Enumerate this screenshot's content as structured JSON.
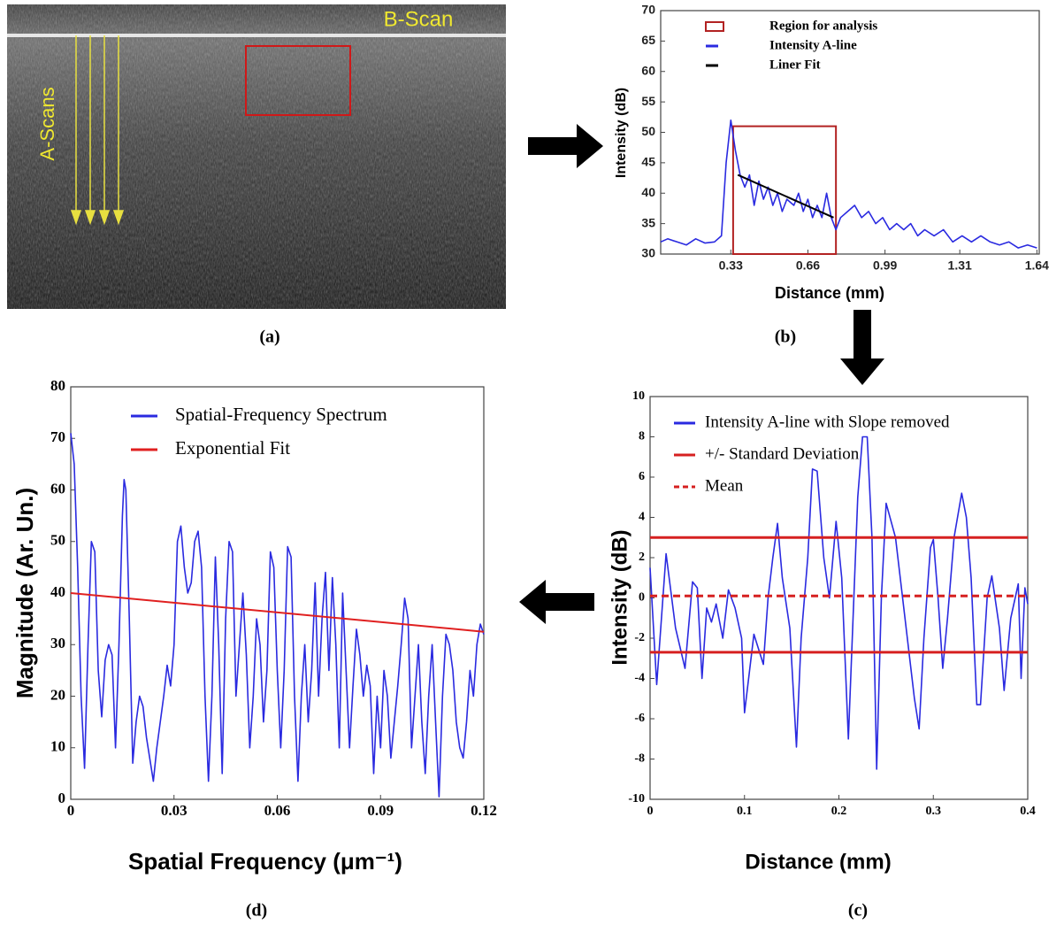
{
  "image_a": {
    "b_scan": "B-Scan",
    "a_scans": "A-Scans",
    "panel_label": "(a)"
  },
  "chart_data": [
    {
      "type": "line",
      "panel_label": "(b)",
      "x_label": "Distance (mm)",
      "y_label": "Intensity (dB)",
      "xlim": [
        0.03,
        1.65
      ],
      "xticks": [
        0.33,
        0.66,
        0.99,
        1.31,
        1.64
      ],
      "ylim": [
        30,
        70
      ],
      "yticks": [
        30,
        35,
        40,
        45,
        50,
        55,
        60,
        65,
        70
      ],
      "region": {
        "name": "Region for analysis",
        "color": "#b22222",
        "x": [
          0.34,
          0.78
        ],
        "y": [
          30,
          51
        ]
      },
      "series": [
        {
          "name": "Intensity A-line",
          "color": "#2a2ae0",
          "x": [
            0.03,
            0.06,
            0.1,
            0.14,
            0.18,
            0.22,
            0.26,
            0.29,
            0.31,
            0.33,
            0.35,
            0.37,
            0.39,
            0.41,
            0.43,
            0.45,
            0.47,
            0.49,
            0.51,
            0.53,
            0.55,
            0.57,
            0.6,
            0.62,
            0.64,
            0.66,
            0.68,
            0.7,
            0.72,
            0.74,
            0.76,
            0.78,
            0.8,
            0.83,
            0.86,
            0.89,
            0.92,
            0.95,
            0.98,
            1.01,
            1.04,
            1.07,
            1.1,
            1.13,
            1.16,
            1.2,
            1.24,
            1.28,
            1.32,
            1.36,
            1.4,
            1.44,
            1.48,
            1.52,
            1.56,
            1.6,
            1.64
          ],
          "values": [
            32,
            32.5,
            32,
            31.5,
            32.5,
            31.8,
            32,
            33,
            45,
            52,
            47,
            43,
            41,
            43,
            38,
            42,
            39,
            41,
            38,
            40,
            37,
            39,
            38,
            40,
            37,
            39,
            36,
            38,
            36,
            40,
            36,
            34,
            36,
            37,
            38,
            36,
            37,
            35,
            36,
            34,
            35,
            34,
            35,
            33,
            34,
            33,
            34,
            32,
            33,
            32,
            33,
            32,
            31.5,
            32,
            31,
            31.5,
            31
          ]
        },
        {
          "name": "Liner Fit",
          "color": "#000000",
          "x": [
            0.36,
            0.77
          ],
          "values": [
            43,
            36
          ]
        }
      ]
    },
    {
      "type": "line",
      "panel_label": "(c)",
      "x_label": "Distance (mm)",
      "y_label": "Intensity (dB)",
      "xlim": [
        0,
        0.4
      ],
      "xticks": [
        0,
        0.1,
        0.2,
        0.3,
        0.4
      ],
      "ylim": [
        -10,
        10
      ],
      "yticks": [
        -10,
        -8,
        -6,
        -4,
        -2,
        0,
        2,
        4,
        6,
        8,
        10
      ],
      "series": [
        {
          "name": "Intensity A-line with Slope removed",
          "color": "#2a2ae0",
          "x": [
            0,
            0.007,
            0.017,
            0.027,
            0.037,
            0.045,
            0.05,
            0.055,
            0.06,
            0.065,
            0.07,
            0.077,
            0.083,
            0.09,
            0.097,
            0.1,
            0.11,
            0.12,
            0.125,
            0.13,
            0.135,
            0.14,
            0.148,
            0.155,
            0.16,
            0.167,
            0.172,
            0.177,
            0.184,
            0.19,
            0.197,
            0.203,
            0.21,
            0.215,
            0.22,
            0.225,
            0.23,
            0.235,
            0.24,
            0.245,
            0.25,
            0.26,
            0.27,
            0.28,
            0.285,
            0.29,
            0.297,
            0.3,
            0.305,
            0.31,
            0.315,
            0.322,
            0.33,
            0.335,
            0.34,
            0.346,
            0.35,
            0.357,
            0.362,
            0.37,
            0.375,
            0.382,
            0.39,
            0.393,
            0.397,
            0.4
          ],
          "values": [
            1.5,
            -4.3,
            2.2,
            -1.5,
            -3.5,
            0.8,
            0.5,
            -4,
            -0.5,
            -1.2,
            -0.3,
            -2,
            0.4,
            -0.5,
            -2,
            -5.7,
            -1.8,
            -3.3,
            0,
            2,
            3.7,
            1,
            -1.5,
            -7.4,
            -2,
            2,
            6.4,
            6.3,
            2,
            0,
            3.8,
            1,
            -7,
            -1,
            5,
            8,
            8,
            3,
            -8.5,
            0,
            4.7,
            3,
            -1,
            -5,
            -6.5,
            -2,
            2.5,
            2.9,
            0,
            -3.5,
            -1,
            3,
            5.2,
            4,
            1,
            -5.3,
            -5.3,
            0,
            1.1,
            -1.5,
            -4.6,
            -1,
            0.7,
            -4,
            0.5,
            -0.3
          ]
        }
      ],
      "lines": [
        {
          "name": "+/- Standard Deviation",
          "color": "#d62020",
          "values": [
            3,
            -2.7
          ]
        },
        {
          "name": "Mean",
          "color": "#d62020",
          "dashed": true,
          "values": [
            0.1
          ]
        }
      ]
    },
    {
      "type": "line",
      "panel_label": "(d)",
      "x_label": "Spatial Frequency (μm⁻¹)",
      "y_label": "Magnitude (Ar. Un.)",
      "xlim": [
        0,
        0.12
      ],
      "xticks": [
        0,
        0.03,
        0.06,
        0.09,
        0.12
      ],
      "ylim": [
        0,
        80
      ],
      "yticks": [
        0,
        10,
        20,
        30,
        40,
        50,
        60,
        70,
        80
      ],
      "series": [
        {
          "name": "Spatial-Frequency Spectrum",
          "color": "#2a2ae0",
          "x": [
            0,
            0.001,
            0.002,
            0.003,
            0.004,
            0.005,
            0.006,
            0.007,
            0.008,
            0.009,
            0.01,
            0.011,
            0.012,
            0.013,
            0.014,
            0.015,
            0.0155,
            0.016,
            0.017,
            0.018,
            0.019,
            0.02,
            0.021,
            0.022,
            0.024,
            0.025,
            0.027,
            0.028,
            0.029,
            0.03,
            0.031,
            0.032,
            0.033,
            0.034,
            0.035,
            0.036,
            0.037,
            0.038,
            0.039,
            0.04,
            0.041,
            0.042,
            0.043,
            0.044,
            0.045,
            0.046,
            0.047,
            0.048,
            0.049,
            0.05,
            0.051,
            0.052,
            0.053,
            0.054,
            0.055,
            0.056,
            0.057,
            0.058,
            0.059,
            0.06,
            0.061,
            0.062,
            0.063,
            0.064,
            0.065,
            0.066,
            0.067,
            0.068,
            0.069,
            0.07,
            0.071,
            0.072,
            0.073,
            0.074,
            0.075,
            0.076,
            0.077,
            0.078,
            0.079,
            0.08,
            0.081,
            0.082,
            0.083,
            0.084,
            0.085,
            0.086,
            0.087,
            0.088,
            0.089,
            0.09,
            0.091,
            0.092,
            0.093,
            0.094,
            0.095,
            0.096,
            0.097,
            0.098,
            0.099,
            0.1,
            0.101,
            0.102,
            0.103,
            0.104,
            0.105,
            0.106,
            0.107,
            0.108,
            0.109,
            0.11,
            0.111,
            0.112,
            0.113,
            0.114,
            0.115,
            0.116,
            0.117,
            0.118,
            0.119,
            0.12
          ],
          "values": [
            71,
            65,
            45,
            20,
            6,
            30,
            50,
            48,
            25,
            16,
            27,
            30,
            28,
            10,
            30,
            55,
            62,
            60,
            35,
            7,
            15,
            20,
            18,
            12,
            3.5,
            10,
            20,
            26,
            22,
            30,
            50,
            53,
            45,
            40,
            42,
            50,
            52,
            45,
            20,
            3.5,
            20,
            47,
            30,
            5,
            35,
            50,
            48,
            20,
            30,
            40,
            28,
            10,
            20,
            35,
            30,
            15,
            25,
            48,
            45,
            25,
            10,
            25,
            49,
            47,
            20,
            3.5,
            20,
            30,
            15,
            25,
            42,
            20,
            35,
            44,
            25,
            43,
            30,
            10,
            40,
            25,
            10,
            22,
            33,
            28,
            20,
            26,
            22,
            5,
            20,
            10,
            25,
            20,
            8,
            15,
            22,
            30,
            39,
            35,
            10,
            20,
            30,
            15,
            5,
            20,
            30,
            15,
            0.5,
            20,
            32,
            30,
            25,
            15,
            10,
            8,
            15,
            25,
            20,
            30,
            34,
            32
          ]
        },
        {
          "name": "Exponential Fit",
          "color": "#e02020",
          "x": [
            0,
            0.12
          ],
          "values": [
            40,
            32.5
          ]
        }
      ]
    }
  ]
}
